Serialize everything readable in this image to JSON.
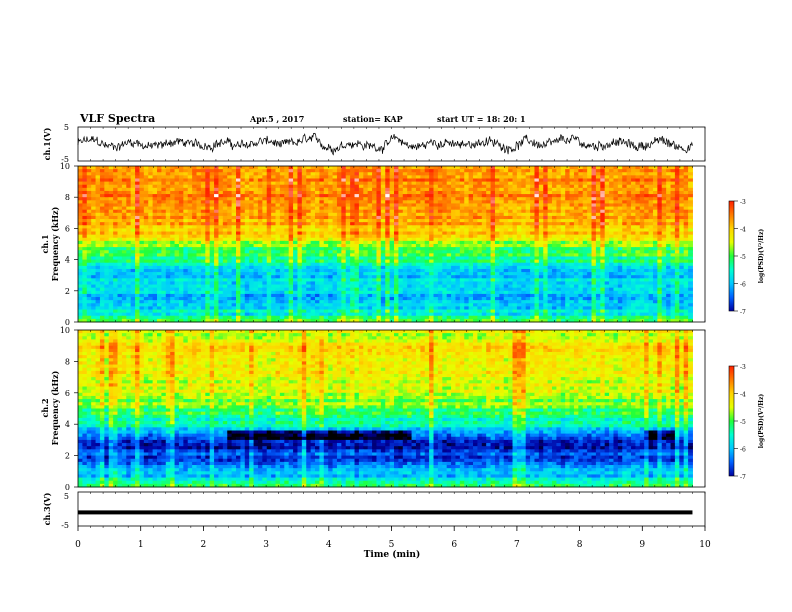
{
  "header": {
    "title": "VLF Spectra",
    "date": "Apr.5 , 2017",
    "station": "station= KAP",
    "start": "start UT =  18: 20: 1"
  },
  "colorbar": {
    "label": "log(PSD)(V²/Hz)",
    "ticks": [
      "-3",
      "-4",
      "-5",
      "-6",
      "-7"
    ],
    "colors": [
      "#ffffff",
      "#ff2000",
      "#ff7a00",
      "#ffd400",
      "#e6ff00",
      "#22ff3a",
      "#00ffd0",
      "#00c8ff",
      "#0060ff",
      "#0000a0",
      "#000000"
    ]
  },
  "chart_data": [
    {
      "type": "line",
      "name": "waveform-ch1",
      "ylabel": "ch.1(V)",
      "ylim": [
        -5,
        5
      ],
      "yticks": [
        "5",
        "-5"
      ],
      "x_range_min": [
        0,
        9.8
      ]
    },
    {
      "type": "heatmap",
      "name": "spectrogram-ch1",
      "ylabel": "ch.1\nFrequency (kHz)",
      "ylim_khz": [
        0,
        10
      ],
      "yticks": [
        "0",
        "2",
        "4",
        "6",
        "8",
        "10"
      ],
      "x_range_min": [
        0,
        9.8
      ],
      "clim_log_psd": [
        -7,
        -3
      ],
      "profile_by_freq_khz": [
        [
          0,
          -5.0
        ],
        [
          0.5,
          -5.6
        ],
        [
          1,
          -5.6
        ],
        [
          1.5,
          -5.9
        ],
        [
          2,
          -5.7
        ],
        [
          2.5,
          -5.6
        ],
        [
          3,
          -5.9
        ],
        [
          3.5,
          -5.5
        ],
        [
          4,
          -5.2
        ],
        [
          4.5,
          -5.1
        ],
        [
          5,
          -4.8
        ],
        [
          5.5,
          -4.4
        ],
        [
          6,
          -4.1
        ],
        [
          7,
          -3.9
        ],
        [
          8,
          -3.8
        ],
        [
          9,
          -3.85
        ],
        [
          10,
          -3.9
        ]
      ]
    },
    {
      "type": "heatmap",
      "name": "spectrogram-ch2",
      "ylabel": "ch.2\nFrequency (kHz)",
      "ylim_khz": [
        0,
        10
      ],
      "yticks": [
        "0",
        "2",
        "4",
        "6",
        "8",
        "10"
      ],
      "x_range_min": [
        0,
        9.8
      ],
      "clim_log_psd": [
        -7,
        -3
      ],
      "profile_by_freq_khz": [
        [
          0,
          -5.1
        ],
        [
          0.5,
          -5.6
        ],
        [
          1,
          -5.9
        ],
        [
          1.5,
          -6.2
        ],
        [
          2,
          -6.3
        ],
        [
          2.5,
          -6.4
        ],
        [
          3,
          -6.3
        ],
        [
          3.5,
          -5.8
        ],
        [
          4,
          -5.4
        ],
        [
          4.5,
          -5.2
        ],
        [
          5,
          -5.0
        ],
        [
          5.5,
          -4.8
        ],
        [
          6,
          -4.7
        ],
        [
          7,
          -4.5
        ],
        [
          8,
          -4.4
        ],
        [
          9,
          -4.4
        ],
        [
          10,
          -4.6
        ]
      ]
    },
    {
      "type": "line",
      "name": "waveform-ch3",
      "ylabel": "ch.3(V)",
      "ylim": [
        -5,
        5
      ],
      "yticks": [
        "5",
        "-5"
      ],
      "x_range_min": [
        0,
        9.8
      ],
      "constant_value_v": -1
    }
  ],
  "xaxis": {
    "label": "Time (min)",
    "range": [
      0,
      10
    ],
    "ticks": [
      "0",
      "1",
      "2",
      "3",
      "4",
      "5",
      "6",
      "7",
      "8",
      "9",
      "10"
    ]
  }
}
